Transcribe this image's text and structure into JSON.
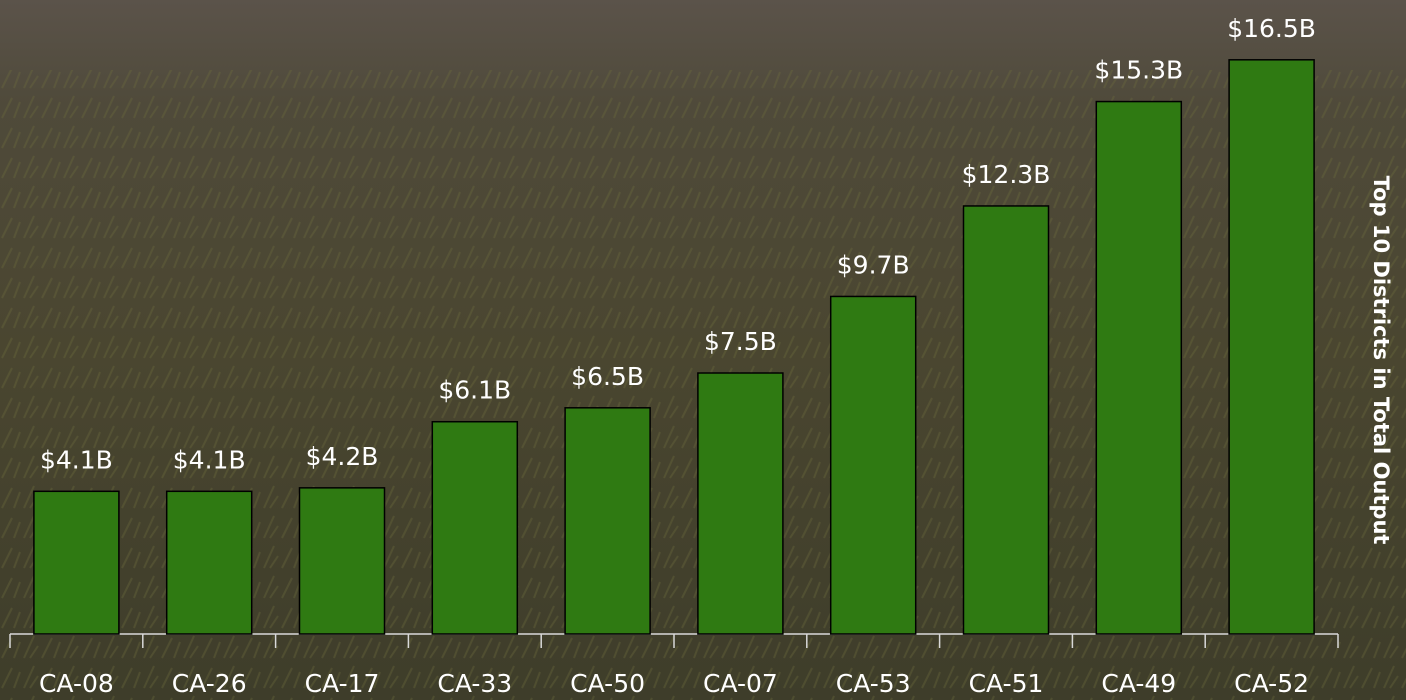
{
  "chart_data": {
    "type": "bar",
    "title": "Top 10 Districts in Total Output",
    "categories": [
      "CA-08",
      "CA-26",
      "CA-17",
      "CA-33",
      "CA-50",
      "CA-07",
      "CA-53",
      "CA-51",
      "CA-49",
      "CA-52"
    ],
    "values": [
      4.1,
      4.1,
      4.2,
      6.1,
      6.5,
      7.5,
      9.7,
      12.3,
      15.3,
      16.5
    ],
    "value_labels": [
      "$4.1B",
      "$4.1B",
      "$4.2B",
      "$6.1B",
      "$6.5B",
      "$7.5B",
      "$9.7B",
      "$12.3B",
      "$15.3B",
      "$16.5B"
    ],
    "color": "#2f7a12"
  }
}
